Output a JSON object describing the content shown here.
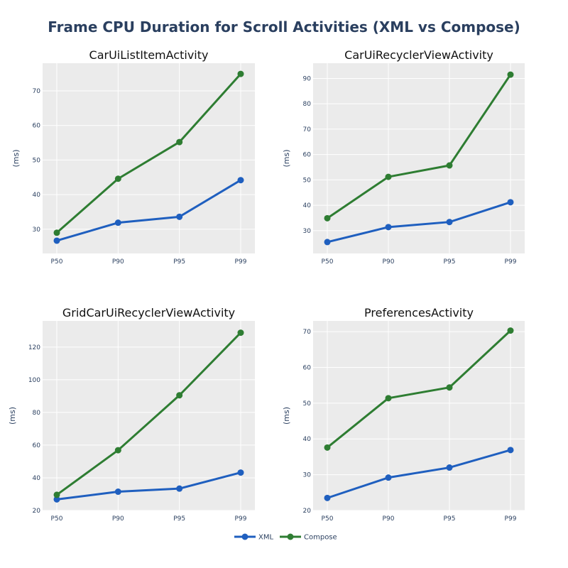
{
  "chart_data": {
    "type": "line",
    "title": "Frame CPU Duration for Scroll Activities (XML vs Compose)",
    "legend": {
      "placement": "bottom-center",
      "entries": [
        "XML",
        "Compose"
      ]
    },
    "colors": {
      "XML": "#1f5fbf",
      "Compose": "#2e7d32",
      "plot_bg": "#ebebeb",
      "grid": "#ffffff",
      "title": "#2a3f5f"
    },
    "grid": true,
    "panels": [
      {
        "title": "CarUiListItemActivity",
        "categories": [
          "P50",
          "P90",
          "P95",
          "P99"
        ],
        "ylabel": "(ms)",
        "ylim": [
          23,
          78
        ],
        "yticks": [
          30,
          40,
          50,
          60,
          70
        ],
        "series": [
          {
            "name": "XML",
            "values": [
              26.7,
              31.9,
              33.6,
              44.2
            ]
          },
          {
            "name": "Compose",
            "values": [
              29.0,
              44.6,
              55.2,
              74.9
            ]
          }
        ]
      },
      {
        "title": "CarUiRecyclerViewActivity",
        "categories": [
          "P50",
          "P90",
          "P95",
          "P99"
        ],
        "ylabel": "(ms)",
        "ylim": [
          21,
          96
        ],
        "yticks": [
          30,
          40,
          50,
          60,
          70,
          80,
          90
        ],
        "series": [
          {
            "name": "XML",
            "values": [
              25.5,
              31.4,
              33.4,
              41.2
            ]
          },
          {
            "name": "Compose",
            "values": [
              34.9,
              51.2,
              55.7,
              91.5
            ]
          }
        ]
      },
      {
        "title": "GridCarUiRecyclerViewActivity",
        "categories": [
          "P50",
          "P90",
          "P95",
          "P99"
        ],
        "ylabel": "(ms)",
        "ylim": [
          20,
          136
        ],
        "yticks": [
          20,
          40,
          60,
          80,
          100,
          120
        ],
        "series": [
          {
            "name": "XML",
            "values": [
              26.8,
              31.5,
              33.4,
              43.2
            ]
          },
          {
            "name": "Compose",
            "values": [
              29.6,
              56.9,
              90.5,
              128.8
            ]
          }
        ]
      },
      {
        "title": "PreferencesActivity",
        "categories": [
          "P50",
          "P90",
          "P95",
          "P99"
        ],
        "ylabel": "(ms)",
        "ylim": [
          20,
          73
        ],
        "yticks": [
          20,
          30,
          40,
          50,
          60,
          70
        ],
        "series": [
          {
            "name": "XML",
            "values": [
              23.5,
              29.2,
              32.0,
              36.9
            ]
          },
          {
            "name": "Compose",
            "values": [
              37.6,
              51.4,
              54.4,
              70.3
            ]
          }
        ]
      }
    ]
  }
}
